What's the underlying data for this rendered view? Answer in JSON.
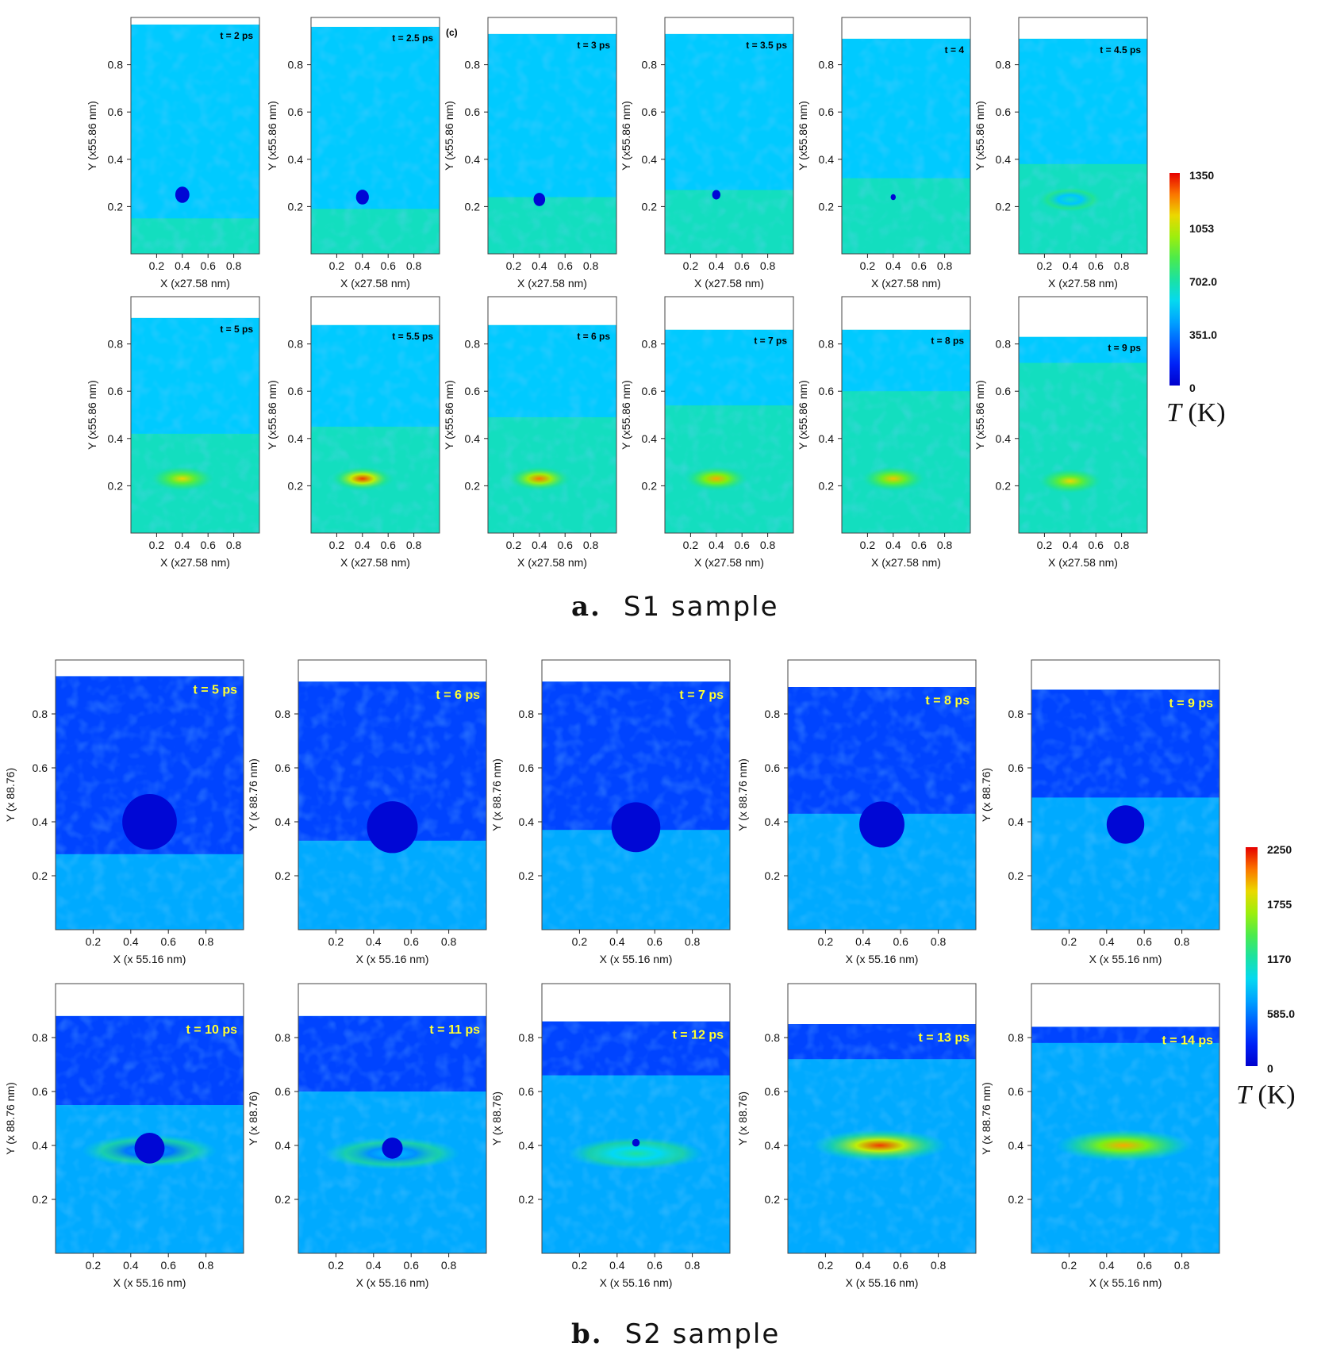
{
  "chart_data": [
    {
      "type": "heatmap",
      "panel_group": "a",
      "caption_letter": "a.",
      "caption_text": "S1 sample",
      "xlabel": "X (x27.58 nm)",
      "ylabel": "Y (x55.86 nm)",
      "xticks": [
        "0.2",
        "0.4",
        "0.6",
        "0.8"
      ],
      "yticks": [
        "0.2",
        "0.4",
        "0.6",
        "0.8"
      ],
      "xlim": [
        0,
        1
      ],
      "ylim": [
        0,
        1
      ],
      "colorbar": {
        "min": 0,
        "max": 1350,
        "ticks": [
          "1350",
          "1053",
          "702.0",
          "351.0",
          "0"
        ],
        "label_italic": "T",
        "label_unit": "(K)"
      },
      "time_label_color": "#000000",
      "panels": [
        {
          "label": "t = 2 ps",
          "top": 0.97,
          "interface_y": 0.15,
          "bubble": {
            "x": 0.4,
            "y": 0.25,
            "r": 0.055
          },
          "hotspot": null
        },
        {
          "label": "t = 2.5 ps",
          "top": 0.96,
          "interface_y": 0.19,
          "bubble": {
            "x": 0.4,
            "y": 0.24,
            "r": 0.05
          },
          "hotspot": null,
          "extra_label": "(c)"
        },
        {
          "label": "t = 3 ps",
          "top": 0.93,
          "interface_y": 0.24,
          "bubble": {
            "x": 0.4,
            "y": 0.23,
            "r": 0.045
          },
          "hotspot": null
        },
        {
          "label": "t = 3.5 ps",
          "top": 0.93,
          "interface_y": 0.27,
          "bubble": {
            "x": 0.4,
            "y": 0.25,
            "r": 0.032
          },
          "hotspot": null
        },
        {
          "label": "t = 4",
          "top": 0.91,
          "interface_y": 0.32,
          "bubble": {
            "x": 0.4,
            "y": 0.24,
            "r": 0.02
          },
          "hotspot": null
        },
        {
          "label": "t = 4.5 ps",
          "top": 0.91,
          "interface_y": 0.38,
          "bubble": null,
          "hotspot": {
            "x": 0.4,
            "y": 0.23,
            "level": 0.45
          }
        },
        {
          "label": "t = 5 ps",
          "top": 0.91,
          "interface_y": 0.42,
          "bubble": null,
          "hotspot": {
            "x": 0.4,
            "y": 0.23,
            "level": 0.8
          }
        },
        {
          "label": "t = 5.5 ps",
          "top": 0.88,
          "interface_y": 0.45,
          "bubble": null,
          "hotspot": {
            "x": 0.4,
            "y": 0.23,
            "level": 0.95
          }
        },
        {
          "label": "t = 6 ps",
          "top": 0.88,
          "interface_y": 0.49,
          "bubble": null,
          "hotspot": {
            "x": 0.4,
            "y": 0.23,
            "level": 0.9
          }
        },
        {
          "label": "t = 7 ps",
          "top": 0.86,
          "interface_y": 0.54,
          "bubble": null,
          "hotspot": {
            "x": 0.4,
            "y": 0.23,
            "level": 0.85
          }
        },
        {
          "label": "t = 8 ps",
          "top": 0.86,
          "interface_y": 0.6,
          "bubble": null,
          "hotspot": {
            "x": 0.4,
            "y": 0.23,
            "level": 0.82
          }
        },
        {
          "label": "t = 9 ps",
          "top": 0.83,
          "interface_y": 0.72,
          "bubble": null,
          "hotspot": {
            "x": 0.4,
            "y": 0.22,
            "level": 0.8
          }
        }
      ]
    },
    {
      "type": "heatmap",
      "panel_group": "b",
      "caption_letter": "b.",
      "caption_text": "S2 sample",
      "xlabel": "X (x 55.16 nm)",
      "ylabel_variants": [
        "Y (x 88.76)",
        "Y (x 88.76 nm)"
      ],
      "xticks": [
        "0.2",
        "0.4",
        "0.6",
        "0.8"
      ],
      "yticks": [
        "0.2",
        "0.4",
        "0.6",
        "0.8"
      ],
      "xlim": [
        0,
        1
      ],
      "ylim": [
        0,
        1
      ],
      "colorbar": {
        "min": 0,
        "max": 2250,
        "ticks": [
          "2250",
          "1755",
          "1170",
          "585.0",
          "0"
        ],
        "label_italic": "T",
        "label_unit": "(K)"
      },
      "time_label_color": "#ffff33",
      "panels": [
        {
          "label": "t = 5 ps",
          "ylabel": "Y (x 88.76)",
          "top": 0.94,
          "interface_y": 0.28,
          "bubble": {
            "x": 0.5,
            "y": 0.4,
            "r": 0.145
          },
          "hotspot": null
        },
        {
          "label": "t = 6 ps",
          "ylabel": "Y (x 88.76 nm)",
          "top": 0.92,
          "interface_y": 0.33,
          "bubble": {
            "x": 0.5,
            "y": 0.38,
            "r": 0.135
          },
          "hotspot": null
        },
        {
          "label": "t = 7 ps",
          "ylabel": "Y (x 88.76 nm)",
          "top": 0.92,
          "interface_y": 0.37,
          "bubble": {
            "x": 0.5,
            "y": 0.38,
            "r": 0.13
          },
          "hotspot": null
        },
        {
          "label": "t = 8 ps",
          "ylabel": "Y (x 88.76 nm)",
          "top": 0.9,
          "interface_y": 0.43,
          "bubble": {
            "x": 0.5,
            "y": 0.39,
            "r": 0.12
          },
          "hotspot": null
        },
        {
          "label": "t = 9 ps",
          "ylabel": "Y (x 88.76)",
          "top": 0.89,
          "interface_y": 0.49,
          "bubble": {
            "x": 0.5,
            "y": 0.39,
            "r": 0.1
          },
          "hotspot": null
        },
        {
          "label": "t = 10 ps",
          "ylabel": "Y (x 88.76 nm)",
          "top": 0.88,
          "interface_y": 0.55,
          "bubble": {
            "x": 0.5,
            "y": 0.39,
            "r": 0.08
          },
          "hotspot": {
            "x": 0.5,
            "y": 0.38,
            "level": 0.3
          }
        },
        {
          "label": "t = 11 ps",
          "ylabel": "Y (x 88.76)",
          "top": 0.88,
          "interface_y": 0.6,
          "bubble": {
            "x": 0.5,
            "y": 0.39,
            "r": 0.055
          },
          "hotspot": {
            "x": 0.5,
            "y": 0.37,
            "level": 0.35
          }
        },
        {
          "label": "t = 12 ps",
          "ylabel": "Y (x 88.76)",
          "top": 0.86,
          "interface_y": 0.66,
          "bubble": {
            "x": 0.5,
            "y": 0.41,
            "r": 0.02
          },
          "hotspot": {
            "x": 0.5,
            "y": 0.37,
            "level": 0.5
          }
        },
        {
          "label": "t = 13 ps",
          "ylabel": "Y (x 88.76)",
          "top": 0.85,
          "interface_y": 0.72,
          "bubble": null,
          "hotspot": {
            "x": 0.49,
            "y": 0.4,
            "level": 0.95
          }
        },
        {
          "label": "t = 14 ps",
          "ylabel": "Y (x 88.76 nm)",
          "top": 0.84,
          "interface_y": 0.78,
          "bubble": null,
          "hotspot": {
            "x": 0.49,
            "y": 0.4,
            "level": 0.85
          }
        }
      ]
    }
  ]
}
